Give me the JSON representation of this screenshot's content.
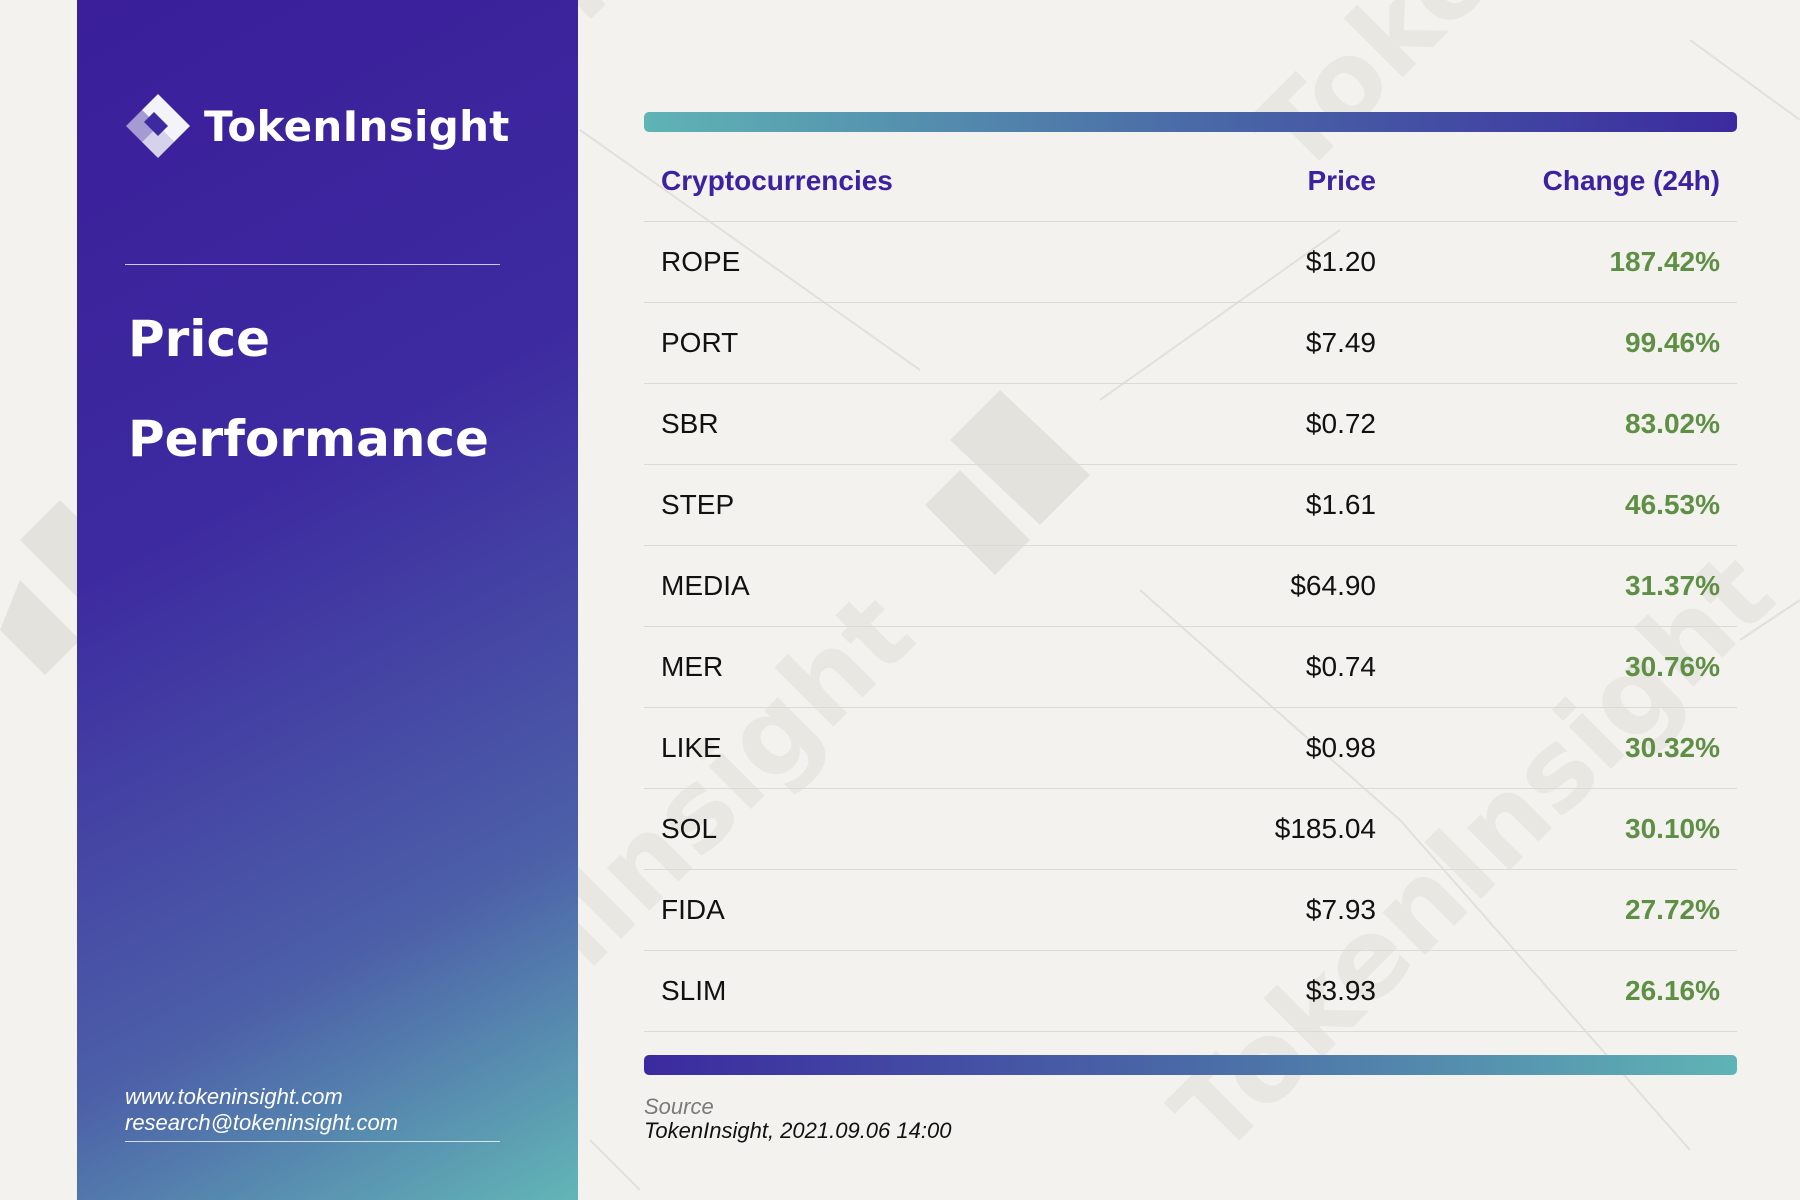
{
  "brand": {
    "name": "TokenInsight",
    "logo_icon": "tokeninsight-logo-icon"
  },
  "sidebar": {
    "title_line1": "Price",
    "title_line2": "Performance",
    "website": "www.tokeninsight.com",
    "email": "research@tokeninsight.com"
  },
  "table": {
    "headers": {
      "name": "Cryptocurrencies",
      "price": "Price",
      "change": "Change (24h)"
    },
    "rows": [
      {
        "name": "ROPE",
        "price": "$1.20",
        "change": "187.42%"
      },
      {
        "name": "PORT",
        "price": "$7.49",
        "change": "99.46%"
      },
      {
        "name": "SBR",
        "price": "$0.72",
        "change": "83.02%"
      },
      {
        "name": "STEP",
        "price": "$1.61",
        "change": "46.53%"
      },
      {
        "name": "MEDIA",
        "price": "$64.90",
        "change": "31.37%"
      },
      {
        "name": "MER",
        "price": "$0.74",
        "change": "30.76%"
      },
      {
        "name": "LIKE",
        "price": "$0.98",
        "change": "30.32%"
      },
      {
        "name": "SOL",
        "price": "$185.04",
        "change": "30.10%"
      },
      {
        "name": "FIDA",
        "price": "$7.93",
        "change": "27.72%"
      },
      {
        "name": "SLIM",
        "price": "$3.93",
        "change": "26.16%"
      }
    ]
  },
  "source": {
    "label": "Source",
    "text": "TokenInsight, 2021.09.06 14:00"
  },
  "watermark": {
    "text": "TokenInsight"
  },
  "colors": {
    "brand_purple": "#3b22a0",
    "positive_green": "#5f8f45",
    "teal": "#5fb4b5",
    "background": "#f3f2ee"
  }
}
